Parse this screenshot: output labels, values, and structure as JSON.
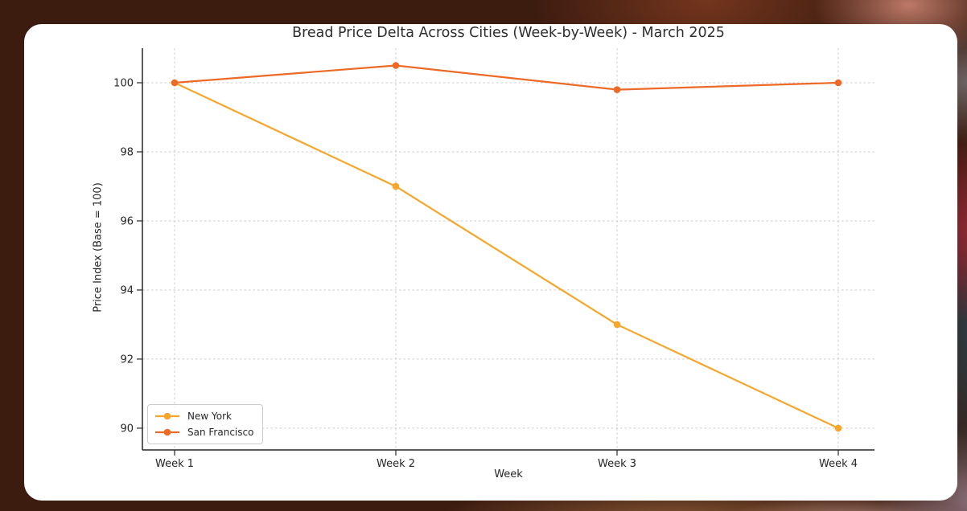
{
  "chart_data": {
    "type": "line",
    "title": "Bread Price Delta Across Cities (Week-by-Week) - March 2025",
    "xlabel": "Week",
    "ylabel": "Price Index (Base = 100)",
    "categories": [
      "Week 1",
      "Week 2",
      "Week 3",
      "Week 4"
    ],
    "series": [
      {
        "name": "New York",
        "color": "#F5A62B",
        "values": [
          100,
          97,
          93,
          90
        ]
      },
      {
        "name": "San Francisco",
        "color": "#EC6A25",
        "values": [
          100,
          100.5,
          99.8,
          100
        ]
      }
    ],
    "yticks": [
      90,
      92,
      94,
      96,
      98,
      100
    ],
    "ylim": [
      89.37,
      101.0
    ],
    "grid": true,
    "grid_style": "dashed",
    "legend_position": "lower left",
    "axis_color": "#262626",
    "grid_color": "#cbcbcb"
  }
}
